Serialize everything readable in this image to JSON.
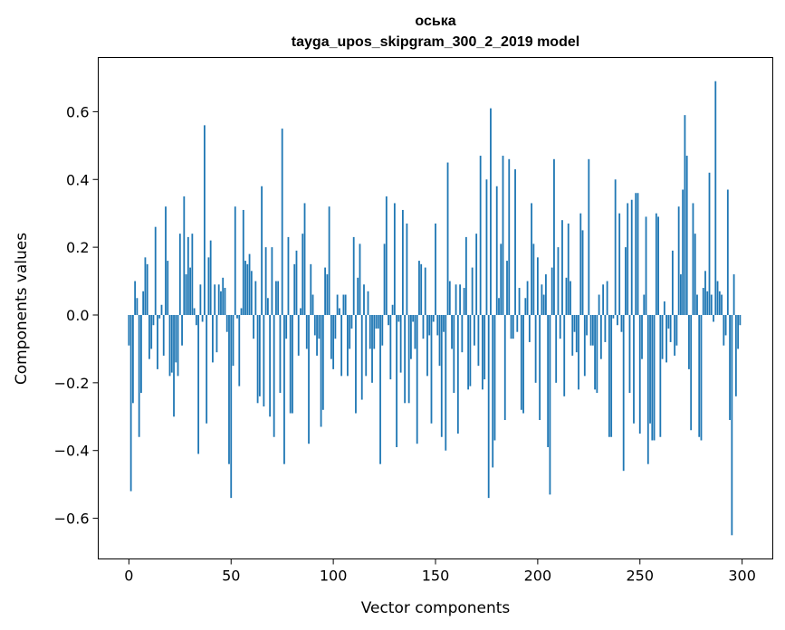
{
  "chart_data": {
    "type": "bar",
    "title": "оська",
    "subtitle": "tayga_upos_skipgram_300_2_2019 model",
    "xlabel": "Vector components",
    "ylabel": "Components values",
    "xlim": [
      -15,
      315
    ],
    "ylim": [
      -0.72,
      0.76
    ],
    "xticks": [
      0,
      50,
      100,
      150,
      200,
      250,
      300
    ],
    "xtick_labels": [
      "0",
      "50",
      "100",
      "150",
      "200",
      "250",
      "300"
    ],
    "yticks": [
      -0.6,
      -0.4,
      -0.2,
      0.0,
      0.2,
      0.4,
      0.6
    ],
    "ytick_labels": [
      "−0.6",
      "−0.4",
      "−0.2",
      "0.0",
      "0.2",
      "0.4",
      "0.6"
    ],
    "grid": false,
    "bar_color": "#1f77b4",
    "values": [
      -0.09,
      -0.52,
      -0.26,
      0.1,
      0.05,
      -0.36,
      -0.23,
      0.07,
      0.17,
      0.15,
      -0.13,
      -0.1,
      -0.03,
      0.26,
      -0.16,
      -0.01,
      0.03,
      -0.12,
      0.32,
      0.16,
      -0.18,
      -0.17,
      -0.3,
      -0.14,
      -0.18,
      0.24,
      -0.09,
      0.35,
      0.12,
      0.23,
      0.14,
      0.24,
      0.02,
      -0.03,
      -0.41,
      0.09,
      -0.02,
      0.56,
      -0.32,
      0.17,
      0.22,
      -0.14,
      0.09,
      -0.11,
      0.09,
      0.07,
      0.11,
      0.08,
      -0.05,
      -0.44,
      -0.54,
      -0.15,
      0.32,
      -0.01,
      -0.21,
      0.02,
      0.31,
      0.16,
      0.15,
      0.18,
      0.13,
      -0.07,
      0.1,
      -0.26,
      -0.24,
      0.38,
      -0.27,
      0.2,
      0.05,
      -0.3,
      0.2,
      -0.36,
      0.1,
      0.1,
      -0.23,
      0.55,
      -0.44,
      -0.07,
      0.23,
      -0.29,
      -0.29,
      0.15,
      0.19,
      -0.12,
      0.02,
      0.24,
      0.33,
      -0.1,
      -0.38,
      0.15,
      0.06,
      -0.06,
      -0.12,
      -0.07,
      -0.33,
      -0.28,
      0.14,
      0.12,
      0.32,
      -0.13,
      -0.16,
      -0.07,
      0.06,
      0.02,
      -0.18,
      0.06,
      0.06,
      -0.18,
      -0.1,
      -0.04,
      0.23,
      -0.29,
      0.11,
      0.21,
      -0.25,
      0.09,
      -0.18,
      0.07,
      -0.1,
      -0.2,
      -0.1,
      -0.04,
      -0.04,
      -0.44,
      -0.09,
      0.21,
      0.35,
      -0.03,
      -0.19,
      0.03,
      0.33,
      -0.39,
      -0.02,
      -0.17,
      0.31,
      -0.26,
      0.27,
      -0.26,
      -0.13,
      -0.02,
      -0.1,
      -0.38,
      0.16,
      0.15,
      -0.07,
      0.14,
      -0.18,
      -0.06,
      -0.32,
      -0.02,
      0.27,
      -0.06,
      -0.15,
      -0.36,
      -0.05,
      -0.4,
      0.45,
      0.1,
      -0.1,
      -0.23,
      0.09,
      -0.35,
      0.09,
      -0.11,
      0.08,
      0.23,
      -0.22,
      -0.21,
      0.14,
      -0.09,
      0.24,
      -0.15,
      0.47,
      -0.22,
      -0.19,
      0.4,
      -0.54,
      0.61,
      -0.45,
      -0.37,
      0.38,
      0.05,
      0.21,
      0.47,
      -0.31,
      0.16,
      0.46,
      -0.07,
      -0.07,
      0.43,
      -0.05,
      0.08,
      -0.28,
      -0.29,
      0.05,
      0.1,
      -0.08,
      0.33,
      0.21,
      -0.2,
      0.17,
      -0.31,
      0.09,
      0.06,
      0.12,
      -0.39,
      -0.53,
      0.14,
      0.46,
      -0.2,
      0.2,
      -0.07,
      0.28,
      -0.24,
      0.11,
      0.27,
      0.1,
      -0.12,
      -0.05,
      -0.11,
      -0.22,
      0.3,
      0.25,
      -0.18,
      -0.06,
      0.46,
      -0.09,
      -0.09,
      -0.22,
      -0.23,
      0.06,
      -0.13,
      0.09,
      -0.08,
      0.1,
      -0.36,
      -0.36,
      -0.01,
      0.4,
      -0.03,
      0.3,
      -0.05,
      -0.46,
      0.2,
      0.33,
      -0.23,
      0.34,
      -0.32,
      0.36,
      0.36,
      -0.35,
      -0.13,
      0.06,
      0.29,
      -0.44,
      -0.32,
      -0.37,
      -0.37,
      0.3,
      0.29,
      -0.36,
      -0.13,
      0.04,
      -0.14,
      -0.04,
      -0.08,
      0.19,
      -0.12,
      -0.09,
      0.32,
      0.12,
      0.37,
      0.59,
      0.47,
      -0.16,
      -0.34,
      0.33,
      0.24,
      0.06,
      -0.36,
      -0.37,
      0.08,
      0.13,
      0.07,
      0.42,
      0.06,
      -0.02,
      0.69,
      0.1,
      0.07,
      0.06,
      -0.09,
      -0.06,
      0.37,
      -0.31,
      -0.65,
      0.12,
      -0.24,
      -0.1,
      -0.03
    ]
  }
}
